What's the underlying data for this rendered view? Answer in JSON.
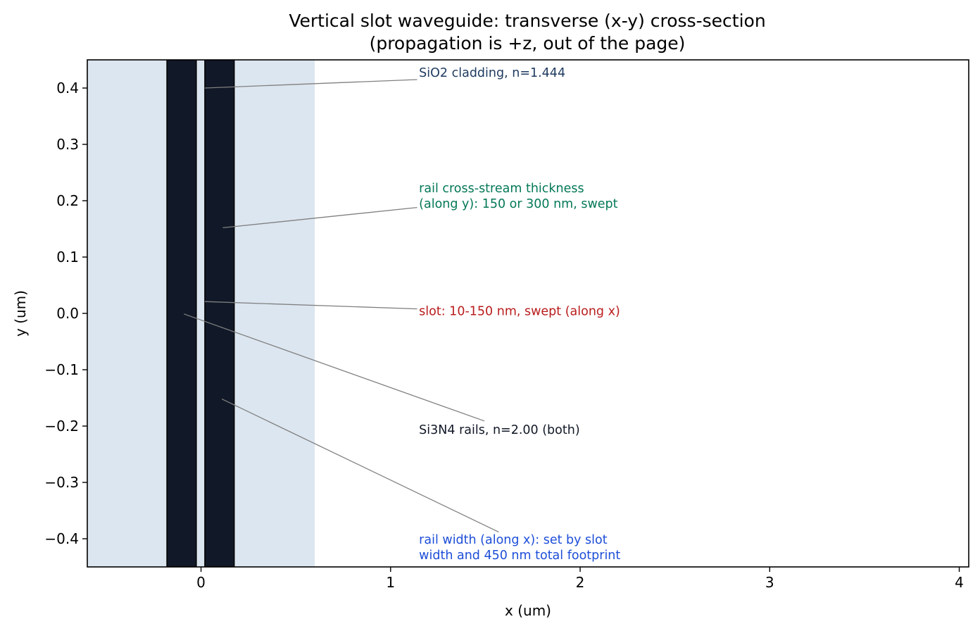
{
  "title_line1": "Vertical slot waveguide: transverse (x-y) cross-section",
  "title_line2": "(propagation is +z, out of the page)",
  "xlabel": "x (um)",
  "ylabel": "y (um)",
  "colors": {
    "cladding": "#dce6f0",
    "rail": "#111827",
    "leader": "#808080"
  },
  "chart_data": {
    "type": "diagram",
    "xlim": [
      -0.6,
      4.05
    ],
    "ylim": [
      -0.45,
      0.45
    ],
    "x_ticks": [
      0,
      1,
      2,
      3,
      4
    ],
    "y_ticks": [
      0.4,
      0.3,
      0.2,
      0.1,
      0.0,
      -0.1,
      -0.2,
      -0.3,
      -0.4
    ],
    "x_tick_labels": [
      "0",
      "1",
      "2",
      "3",
      "4"
    ],
    "y_tick_labels": [
      "0.4",
      "0.3",
      "0.2",
      "0.1",
      "0.0",
      "−0.1",
      "−0.2",
      "−0.3",
      "−0.4"
    ],
    "regions": [
      {
        "id": "cladding",
        "x": [
          -0.6,
          0.6
        ],
        "y": [
          -0.45,
          0.45
        ],
        "color": "#dce6f0"
      },
      {
        "id": "rail-left",
        "x": [
          -0.18,
          -0.025
        ],
        "y": [
          -0.45,
          0.45
        ],
        "color": "#111827"
      },
      {
        "id": "rail-right",
        "x": [
          0.02,
          0.175
        ],
        "y": [
          -0.45,
          0.45
        ],
        "color": "#111827"
      }
    ],
    "annotations": [
      {
        "id": "cladding",
        "lines": [
          "SiO2 cladding, n=1.444"
        ],
        "color": "#1e3a5f",
        "text_xy": [
          1.15,
          0.42
        ],
        "point_xy": [
          0.02,
          0.4
        ],
        "anchor_xy": [
          1.14,
          0.415
        ]
      },
      {
        "id": "thickness",
        "lines": [
          "rail cross-stream thickness",
          "(along y): 150 or 300 nm, swept"
        ],
        "color": "#047857",
        "text_xy": [
          1.15,
          0.215
        ],
        "point_xy": [
          0.115,
          0.152
        ],
        "anchor_xy": [
          1.14,
          0.188
        ]
      },
      {
        "id": "slot",
        "lines": [
          "slot: 10-150 nm, swept (along x)"
        ],
        "color": "#b91c1c",
        "text_xy": [
          1.15,
          -0.003
        ],
        "point_xy": [
          0.02,
          0.021
        ],
        "anchor_xy": [
          1.14,
          0.008
        ]
      },
      {
        "id": "rails",
        "lines": [
          "Si3N4 rails, n=2.00 (both)"
        ],
        "color": "#111827",
        "text_xy": [
          1.15,
          -0.214
        ],
        "point_xy": [
          -0.09,
          -0.001
        ],
        "anchor_xy": [
          1.495,
          -0.191
        ]
      },
      {
        "id": "width",
        "lines": [
          "rail width (along x): set by slot",
          "width and 450 nm total footprint"
        ],
        "color": "#1d4ed8",
        "text_xy": [
          1.15,
          -0.409
        ],
        "point_xy": [
          0.11,
          -0.152
        ],
        "anchor_xy": [
          1.57,
          -0.388
        ]
      }
    ]
  }
}
